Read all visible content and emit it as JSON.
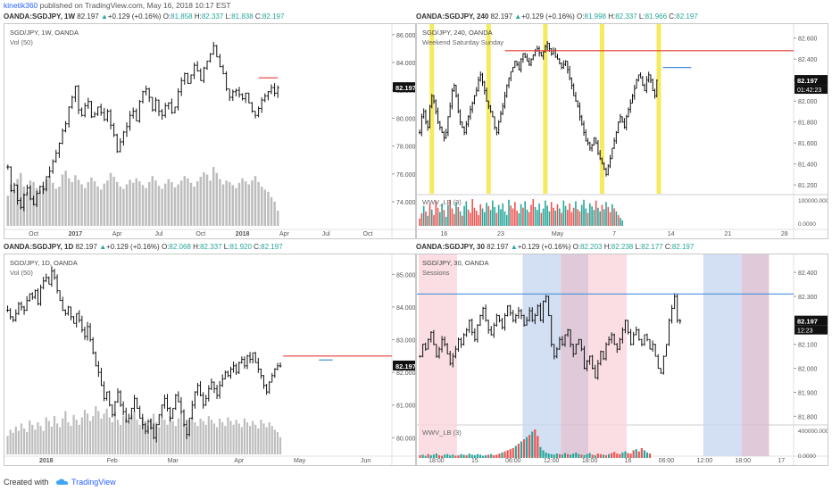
{
  "topbar": {
    "user": "kinetik360",
    "text": " published on TradingView.com, May 16, 2018 10:17 EST"
  },
  "footer": {
    "created": "Created with",
    "brand": "TradingView"
  },
  "colors": {
    "up": "#26a69a",
    "down": "#ef5350",
    "bar": "#111111",
    "vol": "#bdbdbd",
    "red_line": "#e53935",
    "blue_line": "#4a90d9",
    "yellow": "#f5e642",
    "blue_session": "#c8d7f0",
    "pink_session": "#f9d6dc",
    "purple_session": "#d8bdd1"
  },
  "chart_data": [
    {
      "type": "ohlc",
      "id": "weekly",
      "symbol": "OANDA:SGDJPY, 1W",
      "legend_title": "SGD/JPY, 1W, OANDA",
      "indicator": "Vol (50)",
      "header": {
        "sym": "OANDA:SGDJPY, 1W",
        "last": "82.197",
        "chg": "+0.129 (+0.16%)",
        "o": "81.858",
        "h": "82.337",
        "l": "81.838",
        "c": "82.197"
      },
      "ylim": [
        72.4,
        86.5
      ],
      "y_ticks": [
        "86.000",
        "84.000",
        "82.000",
        "80.000",
        "78.000",
        "76.000",
        "74.000"
      ],
      "y_tick_values": [
        86,
        84,
        82,
        80,
        78,
        76,
        74
      ],
      "x_ticks": [
        "Oct",
        "2017",
        "Apr",
        "Jul",
        "Oct",
        "2018",
        "Apr",
        "Jul",
        "Oct"
      ],
      "x_tick_index": [
        8,
        21,
        34,
        47,
        60,
        73,
        86,
        99,
        112
      ],
      "bar_count": 120,
      "price_label": "82.197",
      "closes": [
        76.5,
        74.8,
        75.2,
        74.1,
        73.6,
        74.5,
        75.0,
        74.2,
        73.8,
        74.6,
        75.1,
        74.9,
        75.8,
        76.2,
        76.9,
        77.5,
        78.2,
        79.1,
        79.6,
        80.8,
        81.5,
        82.3,
        80.6,
        80.2,
        80.9,
        81.2,
        80.1,
        80.3,
        80.8,
        80.4,
        79.9,
        80.5,
        79.5,
        78.8,
        77.6,
        78.3,
        79.0,
        79.4,
        80.2,
        80.5,
        79.8,
        81.2,
        81.9,
        82.1,
        81.5,
        80.6,
        81.3,
        80.5,
        80.2,
        80.9,
        81.1,
        80.4,
        80.8,
        81.9,
        82.7,
        83.2,
        82.5,
        83.1,
        83.8,
        83.4,
        82.7,
        83.6,
        84.1,
        84.6,
        85.2,
        84.4,
        83.7,
        83.2,
        82.1,
        81.5,
        81.9,
        82.0,
        81.7,
        81.4,
        81.8,
        81.1,
        80.5,
        80.2,
        80.7,
        81.3,
        81.6,
        81.9,
        82.2,
        81.8,
        82.197
      ],
      "volumes": [
        40,
        55,
        48,
        62,
        70,
        52,
        45,
        60,
        58,
        50,
        47,
        53,
        61,
        66,
        57,
        49,
        52,
        68,
        73,
        63,
        58,
        67,
        61,
        55,
        50,
        58,
        64,
        59,
        52,
        48,
        56,
        60,
        70,
        65,
        58,
        52,
        49,
        55,
        61,
        57,
        63,
        59,
        54,
        50,
        58,
        66,
        60,
        53,
        49,
        56,
        62,
        58,
        51,
        55,
        60,
        66,
        63,
        57,
        52,
        59,
        65,
        71,
        68,
        60,
        78,
        70,
        62,
        55,
        60,
        58,
        54,
        50,
        57,
        63,
        59,
        55,
        60,
        66,
        58,
        52,
        48,
        45,
        38,
        32,
        20
      ]
    },
    {
      "type": "ohlc",
      "id": "h4",
      "symbol": "OANDA:SGDJPY, 240",
      "legend_title": "SGD/JPY, 240, OANDA",
      "indicator": "Weekend Saturday Sunday",
      "sub_indicator": "WWV_LB (3)",
      "header": {
        "sym": "OANDA:SGDJPY, 240",
        "last": "82.197",
        "chg": "+0.129 (+0.16%)",
        "o": "81.998",
        "h": "82.337",
        "l": "81.966",
        "c": "82.197"
      },
      "ylim": [
        81.15,
        82.7
      ],
      "y_ticks": [
        "82.600",
        "82.400",
        "82.200",
        "82.000",
        "81.800",
        "81.600",
        "81.400",
        "81.200"
      ],
      "y_tick_values": [
        82.6,
        82.4,
        82.2,
        82.0,
        81.8,
        81.6,
        81.4,
        81.2
      ],
      "sub_ticks": [
        "100000.0000",
        "0.0000"
      ],
      "x_ticks": [
        "16",
        "23",
        "May",
        "7",
        "14",
        "21",
        "28"
      ],
      "x_tick_index": [
        12,
        40,
        68,
        96,
        124,
        152,
        180
      ],
      "bar_count": 185,
      "price_label": "82.197",
      "time_label": "01:42:23",
      "weekend_at": [
        6,
        34,
        62,
        90,
        118
      ],
      "red_line": {
        "value": 82.48,
        "from": 42
      },
      "blue_line": {
        "value": 82.32,
        "from": 120,
        "to": 134
      },
      "closes": [
        81.7,
        81.85,
        81.9,
        81.8,
        81.75,
        81.95,
        82.05,
        82.0,
        81.9,
        81.8,
        81.75,
        81.7,
        81.65,
        81.7,
        81.85,
        81.95,
        82.1,
        82.15,
        82.05,
        81.9,
        81.8,
        81.75,
        81.7,
        81.78,
        81.85,
        81.92,
        81.98,
        82.05,
        82.1,
        82.2,
        82.25,
        82.18,
        82.1,
        82.0,
        81.95,
        81.9,
        81.85,
        81.75,
        81.7,
        81.8,
        81.88,
        81.95,
        82.05,
        82.15,
        82.22,
        82.28,
        82.32,
        82.38,
        82.35,
        82.3,
        82.4,
        82.45,
        82.42,
        82.38,
        82.35,
        82.4,
        82.44,
        82.48,
        82.5,
        82.46,
        82.43,
        82.47,
        82.52,
        82.55,
        82.5,
        82.45,
        82.48,
        82.42,
        82.4,
        82.36,
        82.32,
        82.35,
        82.38,
        82.3,
        82.22,
        82.15,
        82.05,
        82.0,
        81.95,
        81.85,
        81.78,
        81.7,
        81.62,
        81.6,
        81.55,
        81.58,
        81.65,
        81.6,
        81.5,
        81.45,
        81.4,
        81.35,
        81.3,
        81.38,
        81.45,
        81.55,
        81.62,
        81.7,
        81.8,
        81.85,
        81.8,
        81.75,
        81.85,
        81.92,
        81.98,
        82.05,
        82.12,
        82.2,
        82.25,
        82.22,
        82.15,
        82.1,
        82.2,
        82.25,
        82.2,
        82.1,
        82.05,
        82.197
      ],
      "sub_volumes": [
        20,
        35,
        55,
        40,
        28,
        60,
        45,
        30,
        70,
        50,
        38,
        62,
        44,
        25,
        58,
        72,
        48,
        33,
        66,
        52,
        40,
        28,
        55,
        68,
        45,
        36,
        74,
        50,
        42,
        30,
        60,
        48,
        38,
        64,
        55,
        44,
        70,
        52,
        36,
        58,
        46,
        62,
        40,
        30,
        72,
        56,
        48,
        66,
        42,
        35,
        60,
        50,
        68,
        45,
        38,
        58,
        74,
        52,
        44,
        62,
        36,
        48,
        70,
        56,
        40,
        66,
        50,
        42,
        60,
        48,
        36,
        70,
        55,
        44,
        62,
        38,
        50,
        68,
        46,
        40,
        58,
        72,
        48,
        36,
        62,
        54,
        44,
        70,
        50,
        40,
        58,
        46,
        66,
        52,
        38,
        60,
        48,
        40,
        30,
        22,
        15
      ]
    },
    {
      "type": "ohlc",
      "id": "daily",
      "symbol": "OANDA:SGDJPY, 1D",
      "legend_title": "SGD/JPY, 1D, OANDA",
      "indicator": "Vol (50)",
      "header": {
        "sym": "OANDA:SGDJPY, 1D",
        "last": "82.197",
        "chg": "+0.129 (+0.16%)",
        "o": "82.068",
        "h": "82.337",
        "l": "81.920",
        "c": "82.197"
      },
      "ylim": [
        79.6,
        85.5
      ],
      "y_ticks": [
        "85.000",
        "84.000",
        "83.000",
        "82.000",
        "81.000",
        "80.000"
      ],
      "y_tick_values": [
        85,
        84,
        83,
        82,
        81,
        80
      ],
      "x_ticks": [
        "2018",
        "Feb",
        "Mar",
        "Apr",
        "May",
        "Jun"
      ],
      "x_tick_index": [
        14,
        38,
        60,
        84,
        106,
        130
      ],
      "bar_count": 140,
      "price_label": "82.197",
      "red_line": {
        "value": 82.5,
        "from": 100
      },
      "blue_line": {
        "value": 82.38,
        "from": 113,
        "to": 118
      },
      "closes": [
        83.9,
        83.7,
        83.6,
        83.8,
        84.1,
        84.0,
        83.9,
        84.2,
        84.4,
        84.3,
        84.5,
        84.1,
        84.6,
        84.8,
        84.9,
        84.7,
        85.1,
        84.9,
        84.5,
        84.2,
        83.9,
        83.8,
        84.0,
        83.7,
        83.5,
        83.8,
        83.6,
        83.3,
        83.1,
        83.4,
        83.0,
        82.6,
        82.2,
        82.0,
        81.6,
        81.2,
        81.4,
        81.0,
        80.7,
        81.1,
        81.4,
        81.0,
        80.8,
        80.5,
        80.6,
        80.9,
        81.2,
        80.9,
        80.6,
        80.4,
        80.2,
        80.5,
        80.3,
        80.0,
        80.4,
        80.7,
        81.0,
        81.2,
        80.9,
        80.6,
        80.9,
        81.3,
        81.1,
        80.8,
        80.4,
        80.1,
        80.6,
        81.0,
        81.4,
        81.6,
        81.3,
        81.0,
        81.2,
        81.5,
        81.7,
        81.5,
        81.3,
        81.6,
        81.8,
        82.0,
        81.9,
        82.1,
        82.2,
        82.0,
        82.3,
        82.4,
        82.2,
        82.5,
        82.4,
        82.6,
        82.3,
        82.1,
        81.9,
        81.6,
        81.4,
        81.7,
        81.9,
        82.1,
        82.2,
        82.197
      ],
      "volumes": [
        30,
        40,
        35,
        45,
        38,
        50,
        42,
        36,
        55,
        48,
        40,
        52,
        46,
        38,
        60,
        54,
        45,
        62,
        50,
        44,
        58,
        70,
        52,
        46,
        64,
        56,
        48,
        60,
        72,
        66,
        54,
        62,
        78,
        70,
        58,
        66,
        74,
        60,
        52,
        68,
        56,
        48,
        62,
        58,
        50,
        64,
        70,
        56,
        48,
        60,
        54,
        46,
        58,
        66,
        52,
        44,
        60,
        56,
        48,
        62,
        54,
        46,
        58,
        64,
        50,
        44,
        56,
        60,
        52,
        46,
        58,
        54,
        48,
        62,
        56,
        50,
        44,
        58,
        52,
        46,
        60,
        54,
        48,
        56,
        50,
        44,
        58,
        52,
        46,
        54,
        48,
        42,
        56,
        50,
        44,
        52,
        46,
        40,
        36,
        28
      ]
    },
    {
      "type": "ohlc",
      "id": "m30",
      "symbol": "OANDA:SGDJPY, 30",
      "legend_title": "SGD/JPY, 30, OANDA",
      "indicator": "Sessions",
      "sub_indicator": "WWV_LB (3)",
      "header": {
        "sym": "OANDA:SGDJPY, 30",
        "last": "82.197",
        "chg": "+0.129 (+0.16%)",
        "o": "82.203",
        "h": "82.238",
        "l": "82.177",
        "c": "82.197"
      },
      "ylim": [
        81.79,
        82.46
      ],
      "y_ticks": [
        "82.400",
        "82.300",
        "82.100",
        "82.000",
        "81.900",
        "81.800"
      ],
      "y_tick_values": [
        82.4,
        82.3,
        82.1,
        82.0,
        81.9,
        81.8
      ],
      "sub_ticks": [
        "400000.0000",
        "0.0000"
      ],
      "x_ticks": [
        "18:00",
        "15",
        "06:00",
        "12:00",
        "18:00",
        "16",
        "06:00",
        "12:00",
        "18:00",
        "17"
      ],
      "x_tick_index": [
        6,
        20,
        34,
        48,
        62,
        76,
        90,
        104,
        118,
        132
      ],
      "bar_count": 137,
      "price_label": "82.197",
      "time_label": "12:23",
      "blue_line": {
        "value": 82.31
      },
      "sessions": [
        {
          "kind": "pink",
          "from": 0,
          "to": 14
        },
        {
          "kind": "blue",
          "from": 38,
          "to": 52
        },
        {
          "kind": "purple",
          "from": 52,
          "to": 62
        },
        {
          "kind": "pink",
          "from": 62,
          "to": 76
        },
        {
          "kind": "blue",
          "from": 104,
          "to": 118
        },
        {
          "kind": "purple",
          "from": 118,
          "to": 128
        }
      ],
      "closes": [
        82.05,
        82.1,
        82.08,
        82.12,
        82.15,
        82.1,
        82.05,
        82.08,
        82.12,
        82.1,
        82.06,
        82.02,
        82.05,
        82.08,
        82.12,
        82.1,
        82.14,
        82.16,
        82.2,
        82.15,
        82.12,
        82.18,
        82.22,
        82.25,
        82.2,
        82.16,
        82.14,
        82.18,
        82.22,
        82.2,
        82.17,
        82.22,
        82.26,
        82.23,
        82.2,
        82.22,
        82.24,
        82.22,
        82.18,
        82.2,
        82.24,
        82.2,
        82.22,
        82.26,
        82.2,
        82.28,
        82.3,
        82.22,
        82.1,
        82.05,
        82.08,
        82.12,
        82.1,
        82.14,
        82.16,
        82.1,
        82.06,
        82.1,
        82.12,
        82.08,
        82.0,
        82.03,
        82.05,
        82.0,
        81.96,
        82.02,
        82.07,
        82.04,
        82.1,
        82.12,
        82.14,
        82.1,
        82.08,
        82.12,
        82.16,
        82.2,
        82.15,
        82.1,
        82.14,
        82.16,
        82.12,
        82.1,
        82.14,
        82.12,
        82.08,
        82.1,
        82.05,
        82.0,
        81.98,
        82.05,
        82.1,
        82.2,
        82.25,
        82.3,
        82.2,
        82.197
      ],
      "sub_volumes": [
        5,
        6,
        4,
        7,
        5,
        6,
        8,
        5,
        4,
        6,
        7,
        5,
        6,
        4,
        5,
        7,
        6,
        5,
        8,
        6,
        5,
        7,
        6,
        4,
        5,
        6,
        7,
        5,
        6,
        8,
        10,
        12,
        14,
        16,
        18,
        22,
        26,
        30,
        34,
        38,
        42,
        48,
        52,
        40,
        20,
        14,
        10,
        8,
        7,
        6,
        8,
        7,
        6,
        9,
        7,
        6,
        8,
        10,
        7,
        6,
        5,
        7,
        9,
        6,
        5,
        8,
        7,
        6,
        5,
        7,
        9,
        11,
        8,
        7,
        10,
        12,
        9,
        8,
        14,
        16,
        12,
        18,
        14,
        10,
        8
      ]
    }
  ]
}
